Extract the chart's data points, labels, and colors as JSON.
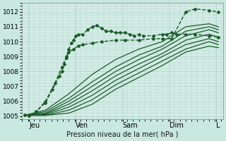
{
  "title": "",
  "xlabel": "Pression niveau de la mer( hPa )",
  "bg_color": "#c8e8e0",
  "plot_bg_color": "#d4ece6",
  "grid_color": "#b0d0cc",
  "line_color": "#1a5c28",
  "ylim": [
    1004.8,
    1012.5
  ],
  "xlim": [
    0,
    4.3
  ],
  "yticks": [
    1005,
    1006,
    1007,
    1008,
    1009,
    1010,
    1011,
    1012
  ],
  "xtick_labels": [
    "Jeu",
    "Ven",
    "Sam",
    "Dim",
    "L"
  ],
  "xtick_positions": [
    0.15,
    1.15,
    2.15,
    3.15,
    4.15
  ],
  "series": [
    {
      "x": [
        0.05,
        0.15,
        0.3,
        0.5,
        0.7,
        0.85,
        0.95,
        1.0,
        1.05,
        1.1,
        1.15,
        1.2,
        1.3,
        1.4,
        1.5,
        1.6,
        1.7,
        1.8,
        1.9,
        2.0,
        2.1,
        2.2,
        2.3,
        2.4,
        2.5,
        2.6,
        2.8,
        3.0,
        3.1,
        3.2,
        3.3,
        3.5,
        3.7,
        4.0,
        4.2
      ],
      "y": [
        1005.1,
        1005.05,
        1005.3,
        1006.0,
        1007.2,
        1008.3,
        1009.0,
        1009.5,
        1009.9,
        1010.1,
        1010.4,
        1010.5,
        1010.5,
        1010.8,
        1011.0,
        1011.1,
        1010.9,
        1010.7,
        1010.7,
        1010.6,
        1010.6,
        1010.6,
        1010.5,
        1010.4,
        1010.5,
        1010.4,
        1010.4,
        1010.5,
        1010.5,
        1010.6,
        1010.5,
        1010.5,
        1010.5,
        1010.4,
        1010.3
      ],
      "dashed": true,
      "marker": true,
      "lw": 1.0
    },
    {
      "x": [
        0.05,
        0.5,
        1.0,
        1.5,
        2.0,
        2.5,
        3.0,
        3.5,
        4.0,
        4.2
      ],
      "y": [
        1005.05,
        1005.4,
        1006.5,
        1007.8,
        1008.8,
        1009.5,
        1010.0,
        1011.0,
        1011.2,
        1011.0
      ],
      "dashed": false,
      "marker": false,
      "lw": 0.9
    },
    {
      "x": [
        0.05,
        0.5,
        1.0,
        1.5,
        2.0,
        2.5,
        3.0,
        3.5,
        4.0,
        4.2
      ],
      "y": [
        1005.05,
        1005.3,
        1006.2,
        1007.3,
        1008.3,
        1009.1,
        1009.7,
        1010.7,
        1011.0,
        1010.8
      ],
      "dashed": false,
      "marker": false,
      "lw": 0.9
    },
    {
      "x": [
        0.05,
        0.5,
        1.0,
        1.5,
        2.0,
        2.5,
        3.0,
        3.5,
        4.0,
        4.2
      ],
      "y": [
        1005.05,
        1005.2,
        1006.0,
        1007.0,
        1008.0,
        1008.8,
        1009.5,
        1010.4,
        1010.8,
        1010.6
      ],
      "dashed": false,
      "marker": false,
      "lw": 0.9
    },
    {
      "x": [
        0.05,
        0.5,
        1.0,
        1.5,
        2.0,
        2.5,
        3.0,
        3.5,
        4.0,
        4.2
      ],
      "y": [
        1005.05,
        1005.15,
        1005.8,
        1006.7,
        1007.7,
        1008.5,
        1009.2,
        1010.1,
        1010.5,
        1010.3
      ],
      "dashed": false,
      "marker": false,
      "lw": 0.9
    },
    {
      "x": [
        0.05,
        0.5,
        1.0,
        1.5,
        2.0,
        2.5,
        3.0,
        3.5,
        4.0,
        4.2
      ],
      "y": [
        1005.05,
        1005.1,
        1005.6,
        1006.4,
        1007.4,
        1008.2,
        1009.0,
        1009.8,
        1010.2,
        1010.0
      ],
      "dashed": false,
      "marker": false,
      "lw": 0.9
    },
    {
      "x": [
        0.05,
        0.5,
        1.0,
        1.5,
        2.0,
        2.5,
        3.0,
        3.5,
        4.0,
        4.2
      ],
      "y": [
        1005.05,
        1005.05,
        1005.4,
        1006.1,
        1007.1,
        1007.9,
        1008.7,
        1009.5,
        1010.0,
        1009.8
      ],
      "dashed": false,
      "marker": false,
      "lw": 0.9
    },
    {
      "x": [
        0.05,
        0.5,
        1.0,
        1.5,
        2.0,
        2.5,
        3.0,
        3.5,
        4.0,
        4.2
      ],
      "y": [
        1005.05,
        1005.05,
        1005.2,
        1005.8,
        1006.8,
        1007.6,
        1008.4,
        1009.3,
        1009.7,
        1009.6
      ],
      "dashed": false,
      "marker": false,
      "lw": 0.9
    },
    {
      "x": [
        0.05,
        0.15,
        0.3,
        0.5,
        0.65,
        0.8,
        0.85,
        0.9,
        0.95,
        1.0,
        1.1,
        1.2,
        1.3,
        1.5,
        1.7,
        2.0,
        2.2,
        2.5,
        2.8,
        3.0,
        3.2,
        3.5,
        3.7,
        4.0,
        4.2
      ],
      "y": [
        1005.1,
        1005.05,
        1005.3,
        1005.9,
        1006.8,
        1007.7,
        1008.0,
        1008.5,
        1008.9,
        1009.3,
        1009.5,
        1009.7,
        1009.8,
        1009.9,
        1010.0,
        1010.1,
        1010.1,
        1010.1,
        1010.2,
        1010.2,
        1010.2,
        1012.0,
        1012.2,
        1012.1,
        1012.0
      ],
      "dashed": true,
      "marker": true,
      "lw": 1.0
    }
  ]
}
